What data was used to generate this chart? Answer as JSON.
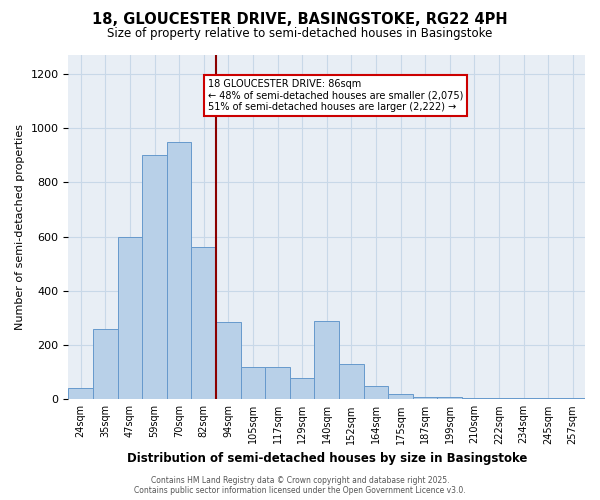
{
  "title_line1": "18, GLOUCESTER DRIVE, BASINGSTOKE, RG22 4PH",
  "title_line2": "Size of property relative to semi-detached houses in Basingstoke",
  "xlabel": "Distribution of semi-detached houses by size in Basingstoke",
  "ylabel": "Number of semi-detached properties",
  "categories": [
    "24sqm",
    "35sqm",
    "47sqm",
    "59sqm",
    "70sqm",
    "82sqm",
    "94sqm",
    "105sqm",
    "117sqm",
    "129sqm",
    "140sqm",
    "152sqm",
    "164sqm",
    "175sqm",
    "187sqm",
    "199sqm",
    "210sqm",
    "222sqm",
    "234sqm",
    "245sqm",
    "257sqm"
  ],
  "values": [
    40,
    260,
    600,
    900,
    950,
    560,
    285,
    120,
    120,
    80,
    290,
    130,
    50,
    20,
    10,
    8,
    5,
    3,
    3,
    3,
    3
  ],
  "bar_color": "#b8d0e8",
  "bar_edge_color": "#6699cc",
  "vline_x_index": 5.5,
  "vline_color": "#8b0000",
  "annotation_title": "18 GLOUCESTER DRIVE: 86sqm",
  "annotation_line2": "← 48% of semi-detached houses are smaller (2,075)",
  "annotation_line3": "51% of semi-detached houses are larger (2,222) →",
  "annotation_box_color": "#ffffff",
  "annotation_box_edge": "#cc0000",
  "ylim": [
    0,
    1270
  ],
  "yticks": [
    0,
    200,
    400,
    600,
    800,
    1000,
    1200
  ],
  "background_color": "#e8eef5",
  "footer_line1": "Contains HM Land Registry data © Crown copyright and database right 2025.",
  "footer_line2": "Contains public sector information licensed under the Open Government Licence v3.0."
}
